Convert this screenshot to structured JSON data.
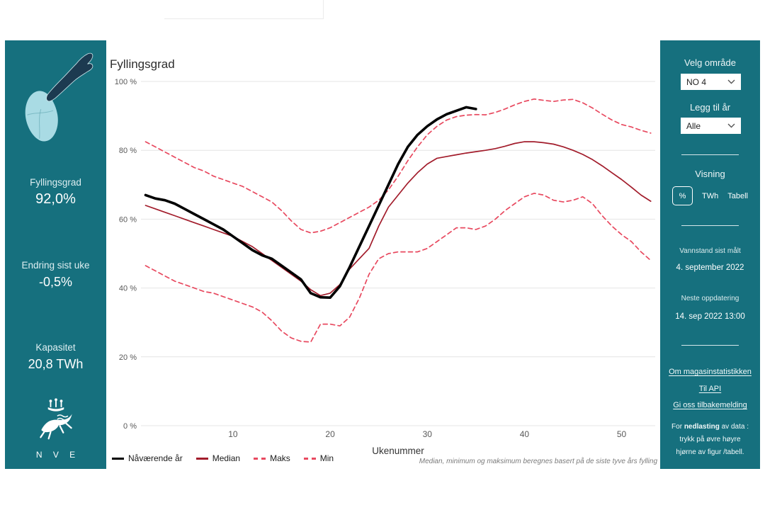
{
  "sidebar_left": {
    "fyllingsgrad_label": "Fyllingsgrad",
    "fyllingsgrad_value": "92,0%",
    "endring_label": "Endring sist uke",
    "endring_value": "-0,5%",
    "kapasitet_label": "Kapasitet",
    "kapasitet_value": "20,8 TWh",
    "logo_text": "N V E"
  },
  "sidebar_right": {
    "velg_omrade_label": "Velg område",
    "omrade_value": "NO 4",
    "legg_til_ar_label": "Legg til år",
    "ar_value": "Alle",
    "visning_label": "Visning",
    "visning_options": [
      "%",
      "TWh",
      "Tabell"
    ],
    "vannstand_label": "Vannstand sist målt",
    "vannstand_value": "4. september 2022",
    "neste_label": "Neste oppdatering",
    "neste_value": "14. sep 2022 13:00",
    "links": [
      "Om magasinstatistikken",
      "Til API",
      "Gi oss tilbakemelding"
    ],
    "note_prefix": "For ",
    "note_bold": "nedlasting",
    "note_rest": " av data :",
    "note_line2": "trykk på øvre høyre",
    "note_line3": "hjørne av figur /tabell."
  },
  "colors": {
    "panel_teal": "#16707e",
    "map_north": "#1c3a50",
    "map_south": "#a9dbe4",
    "current_year": "#000000",
    "median": "#a21c2b",
    "maks_min": "#e8495f",
    "gridline": "#e4e4e4"
  },
  "chart_data": {
    "type": "line",
    "title": "Fyllingsgrad",
    "xlabel": "Ukenummer",
    "footnote": "Median, minimum og maksimum beregnes basert på de siste tyve års fylling",
    "xlim": [
      1,
      53
    ],
    "ylim": [
      0,
      100
    ],
    "x_ticks": [
      10,
      20,
      30,
      40,
      50
    ],
    "y_ticks": [
      "0 %",
      "20 %",
      "40 %",
      "60 %",
      "80 %",
      "100 %"
    ],
    "grid": true,
    "legend_position": "bottom-left",
    "legend": [
      {
        "name": "Nåværende år",
        "color": "#000000",
        "dash": false
      },
      {
        "name": "Median",
        "color": "#a21c2b",
        "dash": false
      },
      {
        "name": "Maks",
        "color": "#e8495f",
        "dash": true
      },
      {
        "name": "Min",
        "color": "#e8495f",
        "dash": true
      }
    ],
    "series": [
      {
        "name": "Maks",
        "color": "#e8495f",
        "dash": true,
        "width": 1.7,
        "x_start": 1,
        "values": [
          82.5,
          81,
          79.5,
          78,
          76.5,
          75,
          74,
          72.5,
          71.5,
          70.5,
          69.5,
          68,
          66.5,
          65,
          62.5,
          59.5,
          57,
          56,
          56.5,
          57.5,
          59,
          60.5,
          62,
          63.5,
          65.5,
          68.5,
          72.5,
          77,
          81,
          84.5,
          87,
          88.8,
          89.8,
          90.2,
          90.4,
          90.3,
          91,
          92,
          93.2,
          94.2,
          94.9,
          94.5,
          94.2,
          94.6,
          94.8,
          93.8,
          92.3,
          90.5,
          88.8,
          87.5,
          86.8,
          85.8,
          85
        ]
      },
      {
        "name": "Min",
        "color": "#e8495f",
        "dash": true,
        "width": 1.7,
        "x_start": 1,
        "values": [
          46.5,
          45,
          43.5,
          42,
          41,
          40,
          39,
          38.5,
          37.5,
          36.5,
          35.5,
          34.5,
          33,
          30.5,
          27.5,
          25.5,
          24.5,
          24.3,
          29.5,
          29.5,
          29,
          31.5,
          37,
          44,
          48.5,
          50,
          50.5,
          50.5,
          50.5,
          51.5,
          53.5,
          55.5,
          57.5,
          57.5,
          57,
          58,
          60,
          62.5,
          64.5,
          66.5,
          67.5,
          67,
          65.5,
          65,
          65.5,
          66.5,
          64.5,
          61,
          58,
          55.5,
          53.5,
          50.5,
          48
        ]
      },
      {
        "name": "Median",
        "color": "#a21c2b",
        "dash": false,
        "width": 1.7,
        "x_start": 1,
        "values": [
          64,
          63,
          62,
          61,
          60,
          59,
          58,
          57,
          56,
          55,
          53.5,
          52,
          50,
          48,
          46,
          44,
          42,
          39.5,
          37.8,
          38.5,
          41,
          45.5,
          48.5,
          51.5,
          58,
          63.5,
          67,
          70.5,
          73.5,
          76,
          77.7,
          78.2,
          78.7,
          79.2,
          79.6,
          80,
          80.5,
          81.2,
          82,
          82.5,
          82.5,
          82.2,
          81.8,
          81,
          80,
          78.8,
          77.3,
          75.5,
          73.5,
          71.5,
          69.3,
          67,
          65.2
        ]
      },
      {
        "name": "Nåværende år",
        "color": "#000000",
        "dash": false,
        "width": 3.6,
        "x_start": 1,
        "values": [
          67,
          66,
          65.5,
          64.5,
          63,
          61.5,
          60,
          58.5,
          57,
          55,
          53,
          51,
          49.5,
          48.5,
          46.5,
          44.5,
          42.5,
          38.5,
          37.3,
          37.2,
          40.5,
          46,
          52,
          58,
          64,
          70,
          76,
          81,
          84.5,
          87,
          89,
          90.5,
          91.5,
          92.5,
          92
        ]
      }
    ]
  }
}
